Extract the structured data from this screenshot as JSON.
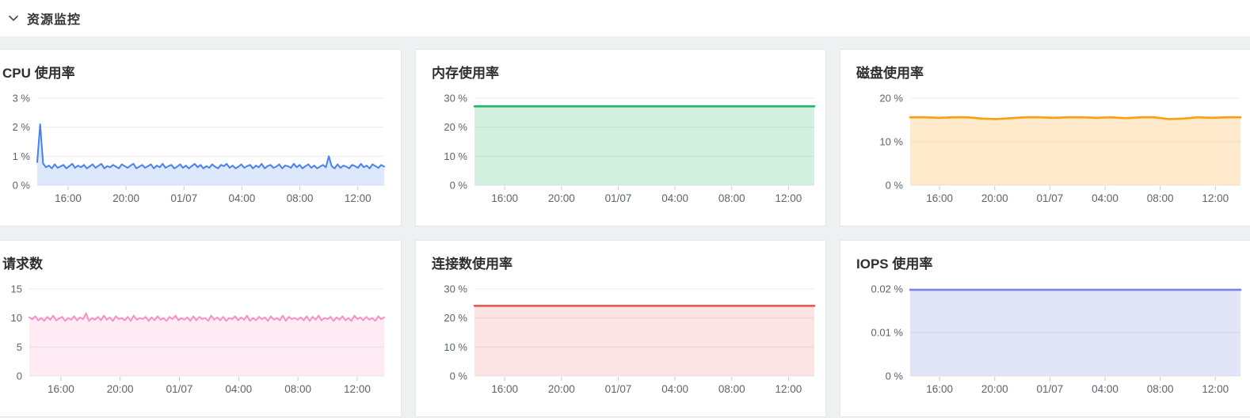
{
  "header": {
    "title": "资源监控",
    "collapse_icon": "chevron-down-icon"
  },
  "colors": {
    "page_bg": "#eef0f2",
    "card_bg": "#ffffff",
    "card_border": "#e5e6e8",
    "grid": "#ececec",
    "tick": "#c6cad2",
    "axis_text": "#5e626b",
    "title_text": "#2e2e2e"
  },
  "chart_data": [
    {
      "type": "area",
      "title": "CPU 使用率",
      "line_color": "#4781f0",
      "fill_color": "rgba(71,129,240,0.18)",
      "ylim": [
        0,
        3
      ],
      "y_ticks": [
        "0 %",
        "1 %",
        "2 %",
        "3 %"
      ],
      "x_tick_labels": [
        "16:00",
        "20:00",
        "01/07",
        "04:00",
        "08:00",
        "12:00"
      ],
      "values": [
        0.8,
        2.1,
        0.75,
        0.62,
        0.68,
        0.58,
        0.72,
        0.6,
        0.65,
        0.7,
        0.58,
        0.66,
        0.74,
        0.6,
        0.68,
        0.62,
        0.7,
        0.58,
        0.65,
        0.72,
        0.6,
        0.67,
        0.74,
        0.58,
        0.66,
        0.62,
        0.7,
        0.64,
        0.58,
        0.72,
        0.66,
        0.6,
        0.68,
        0.74,
        0.58,
        0.64,
        0.7,
        0.6,
        0.66,
        0.72,
        0.58,
        0.68,
        0.62,
        0.74,
        0.6,
        0.66,
        0.7,
        0.58,
        0.64,
        0.72,
        0.6,
        0.68,
        0.58,
        0.66,
        0.74,
        0.62,
        0.7,
        0.58,
        0.66,
        0.6,
        0.72,
        0.64,
        0.58,
        0.7,
        0.66,
        0.74,
        0.6,
        0.68,
        0.58,
        0.64,
        0.72,
        0.6,
        0.66,
        0.7,
        0.58,
        0.68,
        0.62,
        0.74,
        0.58,
        0.66,
        0.7,
        0.6,
        0.64,
        0.72,
        0.58,
        0.68,
        0.66,
        0.6,
        0.74,
        0.62,
        0.7,
        0.58,
        0.66,
        0.72,
        0.6,
        0.68,
        0.58,
        0.64,
        0.7,
        0.62,
        1.0,
        0.66,
        0.58,
        0.72,
        0.6,
        0.68,
        0.64,
        0.58,
        0.7,
        0.66,
        0.6,
        0.74,
        0.62,
        0.68,
        0.58,
        0.72,
        0.66,
        0.6,
        0.7,
        0.64
      ]
    },
    {
      "type": "area",
      "title": "内存使用率",
      "line_color": "#1eb86b",
      "fill_color": "rgba(30,184,107,0.2)",
      "ylim": [
        0,
        30
      ],
      "y_ticks": [
        "0 %",
        "10 %",
        "20 %",
        "30 %"
      ],
      "x_tick_labels": [
        "16:00",
        "20:00",
        "01/07",
        "04:00",
        "08:00",
        "12:00"
      ],
      "values": [
        27.2,
        27.2,
        27.2,
        27.2
      ]
    },
    {
      "type": "area",
      "title": "磁盘使用率",
      "line_color": "#fba00d",
      "fill_color": "rgba(251,160,13,0.22)",
      "ylim": [
        0,
        20
      ],
      "y_ticks": [
        "0 %",
        "10 %",
        "20 %"
      ],
      "x_tick_labels": [
        "16:00",
        "20:00",
        "01/07",
        "04:00",
        "08:00",
        "12:00"
      ],
      "values": [
        15.6,
        15.6,
        15.5,
        15.6,
        15.6,
        15.3,
        15.2,
        15.4,
        15.6,
        15.6,
        15.5,
        15.6,
        15.6,
        15.5,
        15.6,
        15.4,
        15.6,
        15.6,
        15.2,
        15.3,
        15.6,
        15.5,
        15.6,
        15.6
      ]
    },
    {
      "type": "area",
      "title": "请求数",
      "line_color": "#f98fc4",
      "fill_color": "rgba(249,143,196,0.18)",
      "ylim": [
        0,
        15
      ],
      "y_ticks": [
        "0",
        "5",
        "10",
        "15"
      ],
      "x_tick_labels": [
        "16:00",
        "20:00",
        "01/07",
        "04:00",
        "08:00",
        "12:00"
      ],
      "values": [
        10.1,
        9.8,
        10.3,
        9.6,
        10.0,
        9.5,
        10.2,
        9.7,
        10.4,
        9.6,
        9.9,
        10.2,
        9.5,
        10.0,
        9.7,
        10.3,
        9.6,
        10.1,
        9.8,
        10.8,
        9.5,
        10.0,
        9.7,
        10.2,
        9.6,
        10.4,
        9.7,
        10.1,
        9.5,
        10.3,
        9.8,
        10.0,
        9.6,
        10.2,
        9.5,
        10.4,
        9.7,
        10.0,
        9.8,
        10.2,
        9.5,
        10.1,
        9.6,
        10.3,
        9.7,
        10.0,
        9.5,
        10.2,
        9.8,
        10.4,
        9.6,
        10.0,
        9.7,
        10.1,
        9.5,
        10.3,
        9.6,
        10.2,
        9.8,
        10.0,
        9.5,
        10.4,
        9.7,
        10.1,
        9.6,
        10.2,
        9.5,
        10.0,
        9.8,
        10.3,
        9.6,
        10.1,
        9.7,
        10.4,
        9.5,
        10.0,
        9.6,
        10.2,
        9.8,
        10.1,
        9.5,
        10.3,
        9.7,
        10.0,
        9.6,
        10.4,
        9.5,
        10.2,
        9.8,
        10.0,
        9.7,
        10.1,
        9.6,
        10.3,
        9.5,
        10.2,
        9.7,
        10.4,
        9.6,
        10.0,
        9.8,
        10.2,
        9.5,
        10.1,
        9.7,
        10.3,
        9.6,
        10.0,
        9.5,
        10.4,
        9.8,
        10.1,
        9.6,
        10.2,
        9.7,
        10.0,
        9.5,
        10.3,
        9.8,
        10.1
      ]
    },
    {
      "type": "area",
      "title": "连接数使用率",
      "line_color": "#e9584f",
      "fill_color": "rgba(233,88,79,0.16)",
      "ylim": [
        0,
        30
      ],
      "y_ticks": [
        "0 %",
        "10 %",
        "20 %",
        "30 %"
      ],
      "x_tick_labels": [
        "16:00",
        "20:00",
        "01/07",
        "04:00",
        "08:00",
        "12:00"
      ],
      "values": [
        24.2,
        24.2,
        24.2,
        24.2
      ]
    },
    {
      "type": "area",
      "title": "IOPS 使用率",
      "line_color": "#7c85de",
      "fill_color": "rgba(124,133,222,0.22)",
      "ylim": [
        0,
        0.02
      ],
      "y_ticks": [
        "0 %",
        "0.01 %",
        "0.02 %"
      ],
      "x_tick_labels": [
        "16:00",
        "20:00",
        "01/07",
        "04:00",
        "08:00",
        "12:00"
      ],
      "values": [
        0.0198,
        0.0198,
        0.0198,
        0.0198
      ]
    }
  ]
}
